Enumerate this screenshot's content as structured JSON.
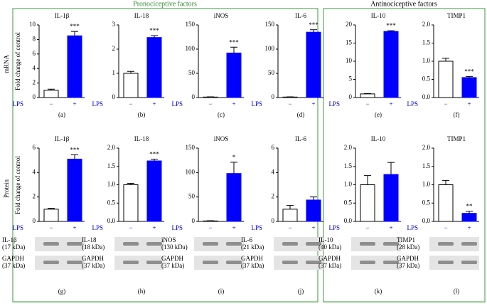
{
  "group_titles": [
    "Pronociceptive factors",
    "Antinociceptive factors"
  ],
  "row_labels": [
    "mRNA",
    "Protein"
  ],
  "y_label": "Fold change of control",
  "chart_data": [
    {
      "type": "bar",
      "title": "IL-1β",
      "panel": "(a)",
      "x_label": "LPS",
      "categories": [
        "−",
        "+"
      ],
      "values": [
        1.0,
        8.5
      ],
      "errors": [
        0.15,
        0.6
      ],
      "colors": [
        "#ffffff",
        "#0000ff"
      ],
      "significance": "***",
      "ylim": [
        0,
        10
      ],
      "yticks": [
        0,
        2,
        4,
        6,
        8,
        10
      ]
    },
    {
      "type": "bar",
      "title": "IL-18",
      "panel": "(b)",
      "x_label": "LPS",
      "categories": [
        "−",
        "+"
      ],
      "values": [
        1.0,
        2.48
      ],
      "errors": [
        0.08,
        0.08
      ],
      "colors": [
        "#ffffff",
        "#0000ff"
      ],
      "significance": "***",
      "ylim": [
        0,
        3
      ],
      "yticks": [
        0,
        1,
        2,
        3
      ]
    },
    {
      "type": "bar",
      "title": "iNOS",
      "panel": "(c)",
      "x_label": "LPS",
      "categories": [
        "−",
        "+"
      ],
      "values": [
        1,
        92
      ],
      "errors": [
        0.5,
        12
      ],
      "colors": [
        "#ffffff",
        "#0000ff"
      ],
      "significance": "***",
      "ylim": [
        0,
        150
      ],
      "yticks": [
        0,
        50,
        100,
        150
      ]
    },
    {
      "type": "bar",
      "title": "IL-6",
      "panel": "(d)",
      "x_label": "LPS",
      "categories": [
        "−",
        "+"
      ],
      "values": [
        1,
        135
      ],
      "errors": [
        0.5,
        5
      ],
      "colors": [
        "#ffffff",
        "#0000ff"
      ],
      "significance": "***",
      "ylim": [
        0,
        150
      ],
      "yticks": [
        0,
        50,
        100,
        150
      ]
    },
    {
      "type": "bar",
      "title": "IL-10",
      "panel": "(e)",
      "x_label": "LPS",
      "categories": [
        "−",
        "+"
      ],
      "values": [
        1.0,
        18.2
      ],
      "errors": [
        0.1,
        0.2
      ],
      "colors": [
        "#ffffff",
        "#0000ff"
      ],
      "significance": "***",
      "ylim": [
        0,
        20
      ],
      "yticks": [
        0,
        5,
        10,
        15,
        20
      ]
    },
    {
      "type": "bar",
      "title": "TIMP1",
      "panel": "(f)",
      "x_label": "LPS",
      "categories": [
        "−",
        "+"
      ],
      "values": [
        1.0,
        0.55
      ],
      "errors": [
        0.08,
        0.03
      ],
      "colors": [
        "#ffffff",
        "#0000ff"
      ],
      "significance": "***",
      "ylim": [
        0,
        2
      ],
      "yticks": [
        {
          "value": 0,
          "label": "0.0"
        },
        0.5,
        {
          "value": 1,
          "label": "1.0"
        },
        1.5,
        {
          "value": 2,
          "label": "2.0"
        }
      ]
    },
    {
      "type": "bar",
      "title": "IL-1β",
      "panel": "(g)",
      "x_label": "LPS",
      "categories": [
        "−",
        "+"
      ],
      "values": [
        1.0,
        5.1
      ],
      "errors": [
        0.07,
        0.35
      ],
      "colors": [
        "#ffffff",
        "#0000ff"
      ],
      "significance": "***",
      "ylim": [
        0,
        6
      ],
      "yticks": [
        0,
        2,
        4,
        6
      ],
      "blot": {
        "target": [
          "IL-1β",
          "(17 kDa)"
        ],
        "loading": [
          "GAPDH",
          "(37 kDa)"
        ]
      }
    },
    {
      "type": "bar",
      "title": "IL-18",
      "panel": "(h)",
      "x_label": "LPS",
      "categories": [
        "−",
        "+"
      ],
      "values": [
        1.0,
        1.65
      ],
      "errors": [
        0.04,
        0.05
      ],
      "colors": [
        "#ffffff",
        "#0000ff"
      ],
      "significance": "***",
      "ylim": [
        0,
        2
      ],
      "yticks": [
        {
          "value": 0,
          "label": "0.0"
        },
        0.5,
        {
          "value": 1,
          "label": "1.0"
        },
        1.5,
        {
          "value": 2,
          "label": "2.0"
        }
      ],
      "blot": {
        "target": [
          "IL-18",
          "(18 kDa)"
        ],
        "loading": [
          "GAPDH",
          "(37 kDa)"
        ]
      }
    },
    {
      "type": "bar",
      "title": "iNOS",
      "panel": "(i)",
      "x_label": "LPS",
      "categories": [
        "−",
        "+"
      ],
      "values": [
        1,
        98
      ],
      "errors": [
        0.5,
        23
      ],
      "colors": [
        "#ffffff",
        "#0000ff"
      ],
      "significance": "*",
      "ylim": [
        0,
        150
      ],
      "yticks": [
        0,
        50,
        100,
        150
      ],
      "blot": {
        "target": [
          "iNOS",
          "(130 kDa)"
        ],
        "loading": [
          "GAPDH",
          "(37 kDa)"
        ]
      }
    },
    {
      "type": "bar",
      "title": "IL-6",
      "panel": "(j)",
      "x_label": "LPS",
      "categories": [
        "−",
        "+"
      ],
      "values": [
        1.0,
        1.75
      ],
      "errors": [
        0.3,
        0.25
      ],
      "colors": [
        "#ffffff",
        "#0000ff"
      ],
      "ylim": [
        0,
        6
      ],
      "yticks": [
        0,
        2,
        4,
        6
      ],
      "blot": {
        "target": [
          "IL-6",
          "(21 kDa)"
        ],
        "loading": [
          "GAPDH",
          "(37 kDa)"
        ]
      }
    },
    {
      "type": "bar",
      "title": "IL-10",
      "panel": "(k)",
      "x_label": "LPS",
      "categories": [
        "−",
        "+"
      ],
      "values": [
        1.0,
        1.28
      ],
      "errors": [
        0.25,
        0.33
      ],
      "colors": [
        "#ffffff",
        "#0000ff"
      ],
      "ylim": [
        0,
        2
      ],
      "yticks": [
        {
          "value": 0,
          "label": "0.0"
        },
        0.5,
        {
          "value": 1,
          "label": "1.0"
        },
        1.5,
        {
          "value": 2,
          "label": "2.0"
        }
      ],
      "blot": {
        "target": [
          "IL-10",
          "(40 kDa)"
        ],
        "loading": [
          "GAPDH",
          "(37 kDa)"
        ]
      }
    },
    {
      "type": "bar",
      "title": "TIMP1",
      "panel": "(l)",
      "x_label": "LPS",
      "categories": [
        "−",
        "+"
      ],
      "values": [
        1.0,
        0.22
      ],
      "errors": [
        0.12,
        0.06
      ],
      "colors": [
        "#ffffff",
        "#0000ff"
      ],
      "significance": "**",
      "ylim": [
        0,
        2
      ],
      "yticks": [
        {
          "value": 0,
          "label": "0.0"
        },
        0.5,
        {
          "value": 1,
          "label": "1.0"
        },
        1.5,
        {
          "value": 2,
          "label": "2.0"
        }
      ],
      "blot": {
        "target": [
          "TIMP1",
          "(28 kDa)"
        ],
        "loading": [
          "GAPDH",
          "(37 kDa)"
        ]
      }
    }
  ]
}
